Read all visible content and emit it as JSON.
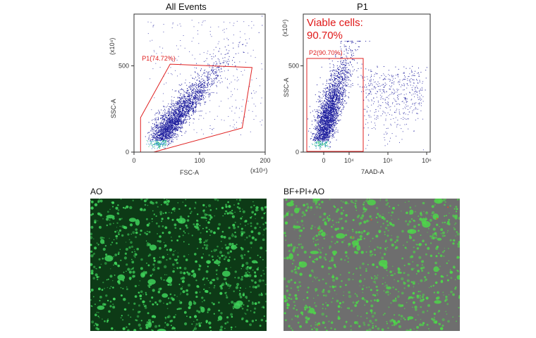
{
  "chart_data": [
    {
      "type": "scatter",
      "title": "All Events",
      "xlabel": "FSC-A",
      "ylabel": "SSC-A",
      "x_multiplier": "(x10⁴)",
      "y_multiplier": "(x10⁴)",
      "xlim": [
        0,
        200
      ],
      "ylim": [
        0,
        800
      ],
      "x_ticks": [
        "0",
        "100",
        "200"
      ],
      "y_ticks": [
        "0",
        "500"
      ],
      "colormap": [
        "#1a1a9c",
        "#2b8fd0",
        "#27c46a"
      ],
      "gate": {
        "name": "P1",
        "label": "P1(74.72%)",
        "percent": 74.72,
        "color": "#e02020",
        "polygon": [
          [
            10,
            200
          ],
          [
            55,
            510
          ],
          [
            180,
            490
          ],
          [
            165,
            140
          ],
          [
            30,
            0
          ],
          [
            10,
            0
          ]
        ]
      },
      "population": {
        "center": [
          35,
          20
        ],
        "spread_x": 45,
        "spread_y": 250,
        "correlation": 0.75
      }
    },
    {
      "type": "scatter",
      "title": "P1",
      "xlabel": "7AAD-A",
      "ylabel": "SSC-A",
      "y_multiplier": "(x10⁴)",
      "x_scale": "biexponential",
      "x_ticks": [
        "0",
        "10⁴",
        "10⁵",
        "10⁶"
      ],
      "y_ticks": [
        "0",
        "500"
      ],
      "ylim": [
        0,
        800
      ],
      "colormap": [
        "#1a1a9c",
        "#2b8fd0",
        "#27c46a"
      ],
      "gate": {
        "name": "P2",
        "label": "P2(90.70%)",
        "percent": 90.7,
        "color": "#e02020"
      },
      "annotation_line1": "Viable cells:",
      "annotation_line2": "90.70%"
    }
  ],
  "images": [
    {
      "label": "AO",
      "description_color": "#0d3a16",
      "cell_color": "#3fd25a"
    },
    {
      "label": "BF+PI+AO",
      "description_color": "#6e6e6e",
      "cell_color": "#4ed64a"
    }
  ]
}
